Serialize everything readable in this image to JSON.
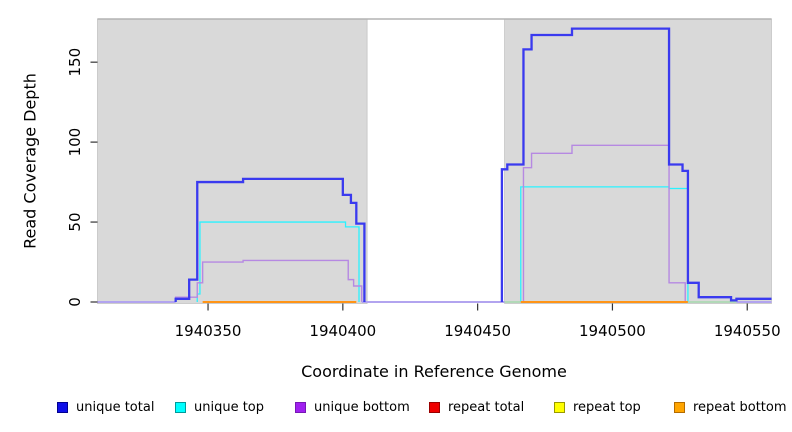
{
  "chart_data": {
    "type": "line",
    "subtype": "step-coverage",
    "title": "",
    "xlabel": "Coordinate in Reference Genome",
    "ylabel": "Read Coverage Depth",
    "x_range": [
      1940309,
      1940559
    ],
    "y_range": [
      0,
      177
    ],
    "grid": "off",
    "x_ticks": [
      {
        "value": 1940350,
        "label": "1940350"
      },
      {
        "value": 1940400,
        "label": "1940400"
      },
      {
        "value": 1940450,
        "label": "1940450"
      },
      {
        "value": 1940500,
        "label": "1940500"
      },
      {
        "value": 1940550,
        "label": "1940550"
      }
    ],
    "y_ticks": [
      {
        "value": 0,
        "label": "0"
      },
      {
        "value": 50,
        "label": "50"
      },
      {
        "value": 100,
        "label": "100"
      },
      {
        "value": 150,
        "label": "150"
      }
    ],
    "background_bands": {
      "color": "#d9d9d9",
      "edge_color": "#c3c3c3",
      "regions": [
        {
          "from": 1940309,
          "to": 1940409
        },
        {
          "from": 1940460,
          "to": 1940559
        }
      ]
    },
    "gap_region": {
      "from": 1940409,
      "to": 1940460,
      "color": "#ffffff"
    },
    "series": [
      {
        "name": "unique total",
        "legend_color": "#0f0fe8",
        "line_color": "#3a3aef",
        "width": 2.3,
        "z": 4,
        "segments": [
          [
            [
              1940338,
              2
            ],
            [
              1940343,
              14
            ],
            [
              1940346,
              75
            ],
            [
              1940363,
              77
            ],
            [
              1940400,
              67
            ],
            [
              1940403,
              62
            ],
            [
              1940405,
              49
            ],
            [
              1940408,
              0
            ]
          ],
          [
            [
              1940459,
              83
            ],
            [
              1940461,
              86
            ],
            [
              1940467,
              158
            ],
            [
              1940470,
              167
            ],
            [
              1940485,
              171
            ],
            [
              1940521,
              86
            ],
            [
              1940526,
              82
            ],
            [
              1940528,
              12
            ],
            [
              1940532,
              3
            ],
            [
              1940544,
              1
            ],
            [
              1940546,
              2
            ],
            [
              1940559,
              2
            ]
          ]
        ]
      },
      {
        "name": "unique top",
        "legend_color": "#00ffff",
        "line_color": "#2af2ff",
        "width": 1.3,
        "z": 1,
        "segments": [
          [
            [
              1940346,
              5
            ],
            [
              1940347,
              50
            ],
            [
              1940401,
              47
            ],
            [
              1940406,
              0
            ]
          ],
          [
            [
              1940466,
              72
            ],
            [
              1940521,
              71
            ],
            [
              1940528,
              0
            ]
          ]
        ]
      },
      {
        "name": "unique bottom",
        "legend_color": "#a020f0",
        "line_color": "#b689e2",
        "width": 1.4,
        "z": 2,
        "segments": [
          [
            [
              1940338,
              3
            ],
            [
              1940346,
              12
            ],
            [
              1940348,
              25
            ],
            [
              1940363,
              26
            ],
            [
              1940402,
              14
            ],
            [
              1940404,
              10
            ],
            [
              1940407,
              0
            ]
          ],
          [
            [
              1940466,
              0
            ],
            [
              1940467,
              84
            ],
            [
              1940470,
              93
            ],
            [
              1940485,
              98
            ],
            [
              1940521,
              12
            ],
            [
              1940527,
              0
            ]
          ]
        ]
      },
      {
        "name": "repeat total",
        "legend_color": "#ee0000",
        "line_color": "#ee0000",
        "width": 1.3,
        "z": 0,
        "visible_line": false,
        "segments": []
      },
      {
        "name": "repeat top",
        "legend_color": "#ffff00",
        "line_color": "#ffff00",
        "width": 1.3,
        "z": 0,
        "visible_line": false,
        "segments": []
      },
      {
        "name": "repeat bottom",
        "legend_color": "#ffa500",
        "line_color": "#ff9416",
        "width": 2,
        "z": 0,
        "visible_line": false,
        "segments": []
      }
    ],
    "zero_line_segments": [
      {
        "series": "unique bottom at 0",
        "color": "#b2a4ef",
        "width": 2,
        "from": 1940309,
        "to": 1940338
      },
      {
        "series": "repeat bottom at 0",
        "color": "#ff9416",
        "width": 2,
        "from": 1940348,
        "to": 1940405
      },
      {
        "series": "unique bottom at 0",
        "color": "#b2a4ef",
        "width": 2,
        "from": 1940407,
        "to": 1940460
      },
      {
        "series": "unique top + repeat top overlap at 0",
        "color": "#a6d9ad",
        "width": 1.6,
        "from": 1940460,
        "to": 1940466
      },
      {
        "series": "repeat bottom at 0",
        "color": "#ff9416",
        "width": 2,
        "from": 1940466,
        "to": 1940528
      },
      {
        "series": "unique top + repeat top overlap at 0",
        "color": "#a6d9ad",
        "width": 1.6,
        "from": 1940528,
        "to": 1940546
      },
      {
        "series": "unique bottom at 0",
        "color": "#b2a4ef",
        "width": 2,
        "from": 1940546,
        "to": 1940559
      }
    ],
    "legend_position": "bottom"
  },
  "legend": {
    "items": [
      {
        "label": "unique total",
        "fill": "#0f0fe8",
        "border": "#000090"
      },
      {
        "label": "unique top",
        "fill": "#00ffff",
        "border": "#009a9a"
      },
      {
        "label": "unique bottom",
        "fill": "#a020f0",
        "border": "#7718b5"
      },
      {
        "label": "repeat total",
        "fill": "#ee0000",
        "border": "#990000"
      },
      {
        "label": "repeat top",
        "fill": "#ffff00",
        "border": "#999900"
      },
      {
        "label": "repeat bottom",
        "fill": "#ffa500",
        "border": "#b36b00"
      }
    ]
  }
}
